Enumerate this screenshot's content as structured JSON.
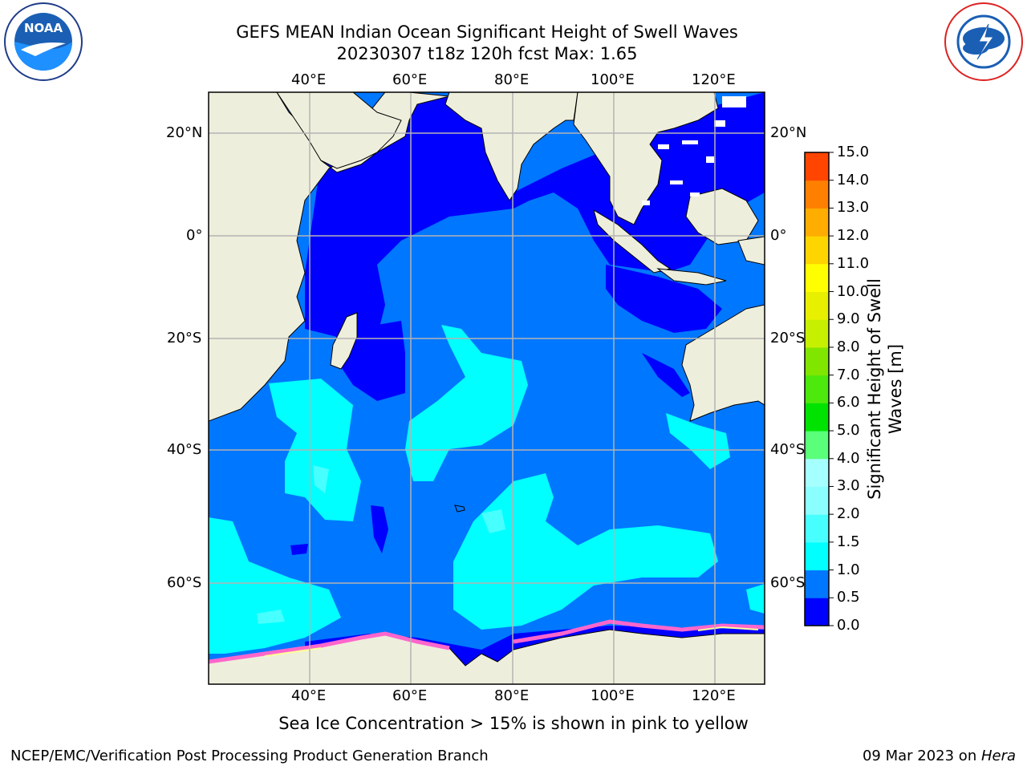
{
  "title": {
    "line1": "GEFS MEAN Indian Ocean Significant Height of Swell Waves",
    "line2": "20230307 t18z 120h fcst   Max: 1.65"
  },
  "axes": {
    "lon_labels": [
      "40°E",
      "60°E",
      "80°E",
      "100°E",
      "120°E"
    ],
    "lat_labels": [
      "20°N",
      "0°",
      "20°S",
      "40°S",
      "60°S"
    ]
  },
  "colorbar": {
    "label": "Significant Height of Swell Waves [m]",
    "ticks": [
      "0.0",
      "0.5",
      "1.0",
      "1.5",
      "2.0",
      "3.0",
      "4.0",
      "5.0",
      "6.0",
      "7.0",
      "8.0",
      "9.0",
      "10.0",
      "11.0",
      "12.0",
      "13.0",
      "14.0",
      "15.0"
    ],
    "colors": [
      "#0000ff",
      "#0077ff",
      "#00ffff",
      "#48ffff",
      "#8bffff",
      "#a6ffff",
      "#5aff7a",
      "#00e200",
      "#4de80c",
      "#80e600",
      "#c7f000",
      "#e8f000",
      "#ffff00",
      "#ffd500",
      "#ffad00",
      "#ff8000",
      "#ff4500",
      "#ff1a00"
    ]
  },
  "colors": {
    "land": "#eeeedc",
    "deep_blue": "#0000ff",
    "mid_blue": "#0077ff",
    "cyan": "#00ffff",
    "light_cyan": "#48ffff",
    "grid": "#b4b4b4",
    "ice_pink": "#ff66cc"
  },
  "logos": {
    "left": "NOAA",
    "right": "NATIONAL WEATHER SERVICE"
  },
  "footnote": "Sea Ice Concentration > 15% is shown in pink to yellow",
  "footer": {
    "left": "NCEP/EMC/Verification Post Processing Product Generation Branch",
    "right_date": "09 Mar 2023 on ",
    "right_host": "Hera"
  }
}
